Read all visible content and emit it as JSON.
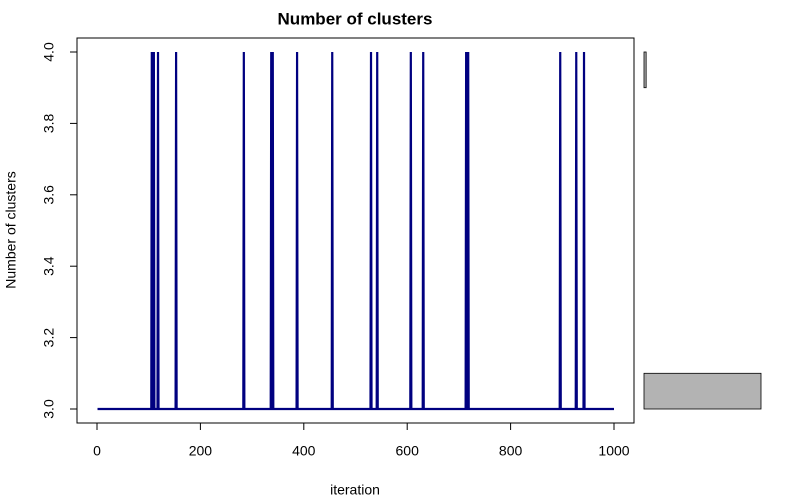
{
  "chart_data": {
    "type": "line",
    "title": "Number of clusters",
    "x_label": "iteration",
    "y_label": "Number of clusters",
    "xlim": [
      0,
      1000
    ],
    "ylim": [
      3,
      4
    ],
    "xticks": [
      0,
      200,
      400,
      600,
      800,
      1000
    ],
    "yticks": [
      {
        "value": 3,
        "label": "3.0"
      },
      {
        "value": 3.2,
        "label": "3.2"
      },
      {
        "value": 3.4,
        "label": "3.4"
      },
      {
        "value": 3.6,
        "label": "3.6"
      },
      {
        "value": 3.8,
        "label": "3.8"
      },
      {
        "value": 4,
        "label": "4.0"
      }
    ],
    "series": [
      {
        "color": "#000080",
        "x": [
          1,
          105,
          106,
          107,
          109,
          110,
          111,
          117,
          118,
          119,
          152,
          153,
          154,
          283,
          284,
          285,
          336,
          337,
          338,
          339,
          340,
          341,
          386,
          387,
          388,
          454,
          455,
          456,
          529,
          530,
          531,
          541,
          542,
          543,
          606,
          607,
          608,
          630,
          631,
          632,
          713,
          714,
          715,
          717,
          718,
          719,
          895,
          896,
          897,
          926,
          927,
          928,
          941,
          942,
          943,
          1000
        ],
        "values": [
          3,
          3,
          4,
          3,
          3,
          4,
          3,
          3,
          4,
          3,
          3,
          4,
          3,
          3,
          4,
          3,
          3,
          4,
          3,
          3,
          4,
          3,
          3,
          4,
          3,
          3,
          4,
          3,
          3,
          4,
          3,
          3,
          4,
          3,
          3,
          4,
          3,
          3,
          4,
          3,
          3,
          4,
          3,
          3,
          4,
          3,
          3,
          4,
          3,
          3,
          4,
          3,
          3,
          4,
          3,
          3
        ]
      }
    ],
    "histogram": {
      "bins": [
        3.0,
        3.1,
        3.2,
        3.3,
        3.4,
        3.5,
        3.6,
        3.7,
        3.8,
        3.9,
        4.0
      ],
      "counts": [
        982,
        0,
        0,
        0,
        0,
        0,
        0,
        0,
        0,
        18
      ],
      "color": "#b3b3b3"
    }
  }
}
